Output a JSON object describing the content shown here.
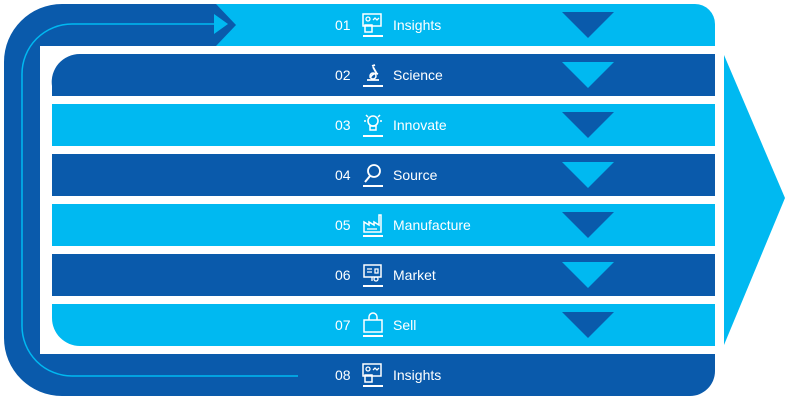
{
  "colors": {
    "dark": "#0a5aab",
    "light": "#00b9f1",
    "background": "#ffffff"
  },
  "steps": [
    {
      "number": "01",
      "label": "Insights",
      "icon": "presentation-board-icon",
      "tone": "light"
    },
    {
      "number": "02",
      "label": "Science",
      "icon": "microscope-icon",
      "tone": "dark"
    },
    {
      "number": "03",
      "label": "Innovate",
      "icon": "lightbulb-icon",
      "tone": "light"
    },
    {
      "number": "04",
      "label": "Source",
      "icon": "magnifier-icon",
      "tone": "dark"
    },
    {
      "number": "05",
      "label": "Manufacture",
      "icon": "factory-icon",
      "tone": "light"
    },
    {
      "number": "06",
      "label": "Market",
      "icon": "billboard-icon",
      "tone": "dark"
    },
    {
      "number": "07",
      "label": "Sell",
      "icon": "shopping-bag-icon",
      "tone": "light"
    },
    {
      "number": "08",
      "label": "Insights",
      "icon": "presentation-board-icon",
      "tone": "dark"
    }
  ]
}
